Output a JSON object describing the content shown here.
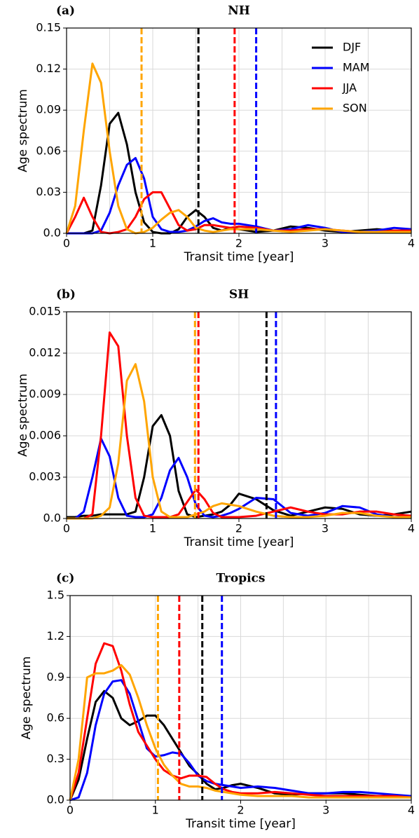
{
  "chart_data": [
    {
      "type": "line",
      "panel_label": "(a)",
      "title": "NH",
      "xlabel": "Transit time [year]",
      "ylabel": "Age spectrum",
      "x": [
        0,
        0.1,
        0.2,
        0.3,
        0.4,
        0.5,
        0.6,
        0.7,
        0.8,
        0.9,
        1.0,
        1.1,
        1.2,
        1.3,
        1.4,
        1.5,
        1.6,
        1.7,
        1.8,
        1.9,
        2.0,
        2.2,
        2.4,
        2.6,
        2.8,
        3.0,
        3.2,
        3.4,
        3.6,
        3.8,
        4.0
      ],
      "xlim": [
        0,
        4
      ],
      "xticks": [
        0,
        1,
        2,
        3,
        4
      ],
      "xminor": [
        0.5,
        1.5,
        2.5,
        3.5
      ],
      "ylim": [
        0,
        0.15
      ],
      "yticks": [
        {
          "value": 0,
          "label": "0.0"
        },
        0.03,
        0.06,
        0.09,
        0.12,
        0.15
      ],
      "grid": true,
      "legend": "upper right",
      "series": [
        {
          "name": "DJF",
          "color": "#000000",
          "mean": 1.53,
          "values": [
            0,
            0,
            0,
            0.002,
            0.035,
            0.08,
            0.088,
            0.065,
            0.03,
            0.008,
            0.001,
            0,
            0,
            0.003,
            0.012,
            0.017,
            0.012,
            0.004,
            0.002,
            0.004,
            0.003,
            0.001,
            0.002,
            0.005,
            0.004,
            0.002,
            0.001,
            0.002,
            0.003,
            0.002,
            0.002
          ]
        },
        {
          "name": "MAM",
          "color": "#0000ff",
          "mean": 2.2,
          "values": [
            0,
            0,
            0,
            0,
            0.002,
            0.015,
            0.035,
            0.05,
            0.055,
            0.04,
            0.012,
            0.003,
            0.001,
            0.001,
            0.002,
            0.005,
            0.009,
            0.011,
            0.008,
            0.007,
            0.007,
            0.005,
            0.002,
            0.003,
            0.006,
            0.004,
            0.001,
            0.001,
            0.002,
            0.004,
            0.003
          ]
        },
        {
          "name": "JJA",
          "color": "#ff0000",
          "mean": 1.95,
          "values": [
            0,
            0.012,
            0.026,
            0.012,
            0.001,
            0,
            0.001,
            0.003,
            0.012,
            0.025,
            0.03,
            0.03,
            0.018,
            0.006,
            0.002,
            0.003,
            0.006,
            0.006,
            0.005,
            0.004,
            0.005,
            0.004,
            0.002,
            0.002,
            0.003,
            0.003,
            0.002,
            0.001,
            0.001,
            0.002,
            0.002
          ]
        },
        {
          "name": "SON",
          "color": "#ffa500",
          "mean": 0.87,
          "values": [
            0,
            0.02,
            0.075,
            0.124,
            0.11,
            0.06,
            0.02,
            0.003,
            0,
            0.001,
            0.004,
            0.01,
            0.015,
            0.017,
            0.012,
            0.004,
            0.002,
            0.001,
            0.002,
            0.003,
            0.003,
            0.003,
            0.002,
            0.001,
            0.002,
            0.003,
            0.002,
            0.001,
            0.001,
            0.001,
            0.001
          ]
        }
      ]
    },
    {
      "type": "line",
      "panel_label": "(b)",
      "title": "SH",
      "xlabel": "Transit time [year]",
      "ylabel": "Age spectrum",
      "x": [
        0,
        0.1,
        0.2,
        0.3,
        0.4,
        0.5,
        0.6,
        0.7,
        0.8,
        0.9,
        1.0,
        1.1,
        1.2,
        1.3,
        1.4,
        1.5,
        1.6,
        1.7,
        1.8,
        1.9,
        2.0,
        2.2,
        2.4,
        2.6,
        2.8,
        3.0,
        3.2,
        3.4,
        3.6,
        3.8,
        4.0
      ],
      "xlim": [
        0,
        4
      ],
      "xticks": [
        0,
        1,
        2,
        3,
        4
      ],
      "xminor": [
        0.5,
        1.5,
        2.5,
        3.5
      ],
      "ylim": [
        0,
        0.015
      ],
      "yticks": [
        {
          "value": 0,
          "label": "0.0"
        },
        0.003,
        0.006,
        0.009,
        0.012,
        0.015
      ],
      "grid": true,
      "series": [
        {
          "name": "DJF",
          "color": "#000000",
          "mean": 2.32,
          "values": [
            0.0001,
            0.0001,
            0.0002,
            0.0002,
            0.0003,
            0.0003,
            0.0003,
            0.0003,
            0.0005,
            0.003,
            0.0067,
            0.0075,
            0.006,
            0.002,
            0.0003,
            0.0001,
            0.0002,
            0.0003,
            0.0005,
            0.001,
            0.0018,
            0.0014,
            0.0006,
            0.0002,
            0.0005,
            0.0008,
            0.0007,
            0.0003,
            0.0002,
            0.0003,
            0.0005
          ]
        },
        {
          "name": "MAM",
          "color": "#0000ff",
          "mean": 2.43,
          "values": [
            0,
            0,
            0.0005,
            0.003,
            0.0058,
            0.0045,
            0.0015,
            0.0002,
            0.0001,
            0.0001,
            0.0003,
            0.0015,
            0.0035,
            0.0044,
            0.003,
            0.001,
            0.0002,
            0.0001,
            0.0002,
            0.0004,
            0.0007,
            0.0015,
            0.0014,
            0.0004,
            0.0002,
            0.0004,
            0.0009,
            0.0008,
            0.0003,
            0.0001,
            0.0002
          ]
        },
        {
          "name": "JJA",
          "color": "#ff0000",
          "mean": 1.53,
          "values": [
            0,
            0,
            0,
            0.0003,
            0.006,
            0.0135,
            0.0125,
            0.006,
            0.0015,
            0.0002,
            0.0001,
            0.0001,
            0.0001,
            0.0003,
            0.0012,
            0.0021,
            0.0014,
            0.0004,
            0.0001,
            0.0001,
            0.0001,
            0.0002,
            0.0005,
            0.0008,
            0.0005,
            0.0003,
            0.0003,
            0.0005,
            0.0005,
            0.0003,
            0.0002
          ]
        },
        {
          "name": "SON",
          "color": "#ffa500",
          "mean": 1.49,
          "values": [
            0,
            0,
            0,
            0,
            0.0002,
            0.0008,
            0.004,
            0.01,
            0.0112,
            0.0085,
            0.003,
            0.0005,
            0.0001,
            0.0001,
            0.0001,
            0.0003,
            0.0005,
            0.0009,
            0.0011,
            0.001,
            0.0009,
            0.0005,
            0.0002,
            0.0001,
            0.0001,
            0.0002,
            0.0004,
            0.0004,
            0.0002,
            0.0001,
            0.0001
          ]
        }
      ]
    },
    {
      "type": "line",
      "panel_label": "(c)",
      "title": "Tropics",
      "xlabel": "Transit time [year]",
      "ylabel": "Age spectrum",
      "x": [
        0,
        0.1,
        0.2,
        0.3,
        0.4,
        0.5,
        0.6,
        0.7,
        0.8,
        0.9,
        1.0,
        1.1,
        1.2,
        1.3,
        1.4,
        1.5,
        1.6,
        1.7,
        1.8,
        1.9,
        2.0,
        2.2,
        2.4,
        2.6,
        2.8,
        3.0,
        3.2,
        3.4,
        3.6,
        3.8,
        4.0
      ],
      "xlim": [
        0,
        4
      ],
      "xticks": [
        0,
        1,
        2,
        3,
        4
      ],
      "xminor": [
        0.5,
        1.5,
        2.5,
        3.5
      ],
      "ylim": [
        0,
        1.5
      ],
      "yticks": [
        {
          "value": 0,
          "label": "0.0"
        },
        0.3,
        0.6,
        0.9,
        1.2,
        1.5
      ],
      "grid": true,
      "series": [
        {
          "name": "DJF",
          "color": "#000000",
          "mean": 1.55,
          "values": [
            0,
            0.15,
            0.45,
            0.72,
            0.8,
            0.75,
            0.6,
            0.55,
            0.58,
            0.62,
            0.62,
            0.55,
            0.45,
            0.35,
            0.25,
            0.19,
            0.12,
            0.08,
            0.09,
            0.11,
            0.12,
            0.09,
            0.05,
            0.04,
            0.05,
            0.05,
            0.05,
            0.04,
            0.03,
            0.03,
            0.03
          ]
        },
        {
          "name": "MAM",
          "color": "#0000ff",
          "mean": 1.78,
          "values": [
            0,
            0.02,
            0.2,
            0.55,
            0.78,
            0.87,
            0.88,
            0.78,
            0.58,
            0.38,
            0.32,
            0.33,
            0.35,
            0.34,
            0.27,
            0.18,
            0.14,
            0.12,
            0.11,
            0.1,
            0.09,
            0.1,
            0.09,
            0.07,
            0.05,
            0.05,
            0.06,
            0.06,
            0.05,
            0.04,
            0.03
          ]
        },
        {
          "name": "JJA",
          "color": "#ff0000",
          "mean": 1.28,
          "values": [
            0,
            0.2,
            0.6,
            1.0,
            1.15,
            1.13,
            0.95,
            0.7,
            0.5,
            0.4,
            0.3,
            0.22,
            0.18,
            0.16,
            0.18,
            0.18,
            0.17,
            0.12,
            0.08,
            0.06,
            0.05,
            0.05,
            0.06,
            0.05,
            0.04,
            0.03,
            0.03,
            0.03,
            0.03,
            0.03,
            0.02
          ]
        },
        {
          "name": "SON",
          "color": "#ffa500",
          "mean": 1.03,
          "values": [
            0,
            0.3,
            0.9,
            0.93,
            0.93,
            0.95,
            0.99,
            0.92,
            0.75,
            0.55,
            0.38,
            0.26,
            0.18,
            0.12,
            0.1,
            0.1,
            0.09,
            0.07,
            0.06,
            0.05,
            0.04,
            0.03,
            0.03,
            0.03,
            0.02,
            0.02,
            0.02,
            0.02,
            0.02,
            0.02,
            0.02
          ]
        }
      ]
    }
  ]
}
